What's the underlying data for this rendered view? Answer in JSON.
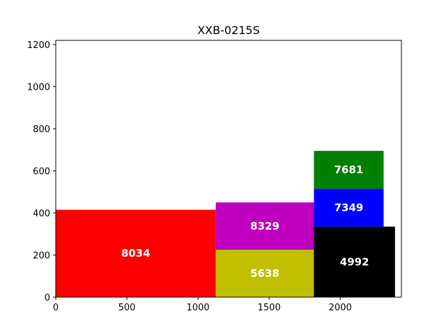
{
  "chart_data": {
    "type": "bar",
    "title": "XXB-0215S",
    "xlabel": "",
    "ylabel": "",
    "xlim": [
      0,
      2430
    ],
    "ylim": [
      0,
      1220
    ],
    "xticks": [
      0,
      500,
      1000,
      1500,
      2000
    ],
    "yticks": [
      0,
      200,
      400,
      600,
      800,
      1000,
      1200
    ],
    "grid": false,
    "rects": [
      {
        "label": "8034",
        "x": 0,
        "y": 0,
        "width": 1125,
        "height": 415,
        "color": "#ff0000"
      },
      {
        "label": "5638",
        "x": 1125,
        "y": 0,
        "width": 690,
        "height": 225,
        "color": "#bfbf00"
      },
      {
        "label": "8329",
        "x": 1125,
        "y": 225,
        "width": 690,
        "height": 225,
        "color": "#bf00bf"
      },
      {
        "label": "4992",
        "x": 1815,
        "y": 0,
        "width": 570,
        "height": 335,
        "color": "#000000"
      },
      {
        "label": "7349",
        "x": 1815,
        "y": 335,
        "width": 490,
        "height": 180,
        "color": "#0000ff"
      },
      {
        "label": "7681",
        "x": 1815,
        "y": 515,
        "width": 490,
        "height": 180,
        "color": "#008000"
      }
    ]
  }
}
